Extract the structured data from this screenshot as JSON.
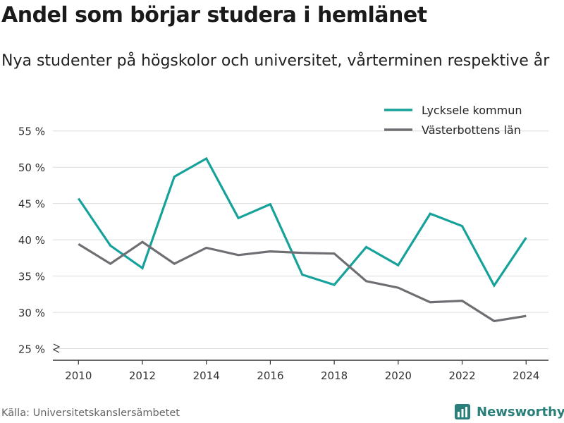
{
  "title": "Andel som börjar studera i hemlänet",
  "subtitle": "Nya studenter på högskolor och universitet, vårterminen respektive år",
  "source": "Källa: Universitetskanslersämbetet",
  "brand": {
    "name": "Newsworthy",
    "icon": "bar-chart-icon",
    "color": "#2a7f7a"
  },
  "chart_data": {
    "type": "line",
    "x": [
      2010,
      2011,
      2012,
      2013,
      2014,
      2015,
      2016,
      2017,
      2018,
      2019,
      2020,
      2021,
      2022,
      2023,
      2024
    ],
    "xticks": [
      "2010",
      "2012",
      "2014",
      "2016",
      "2018",
      "2020",
      "2022",
      "2024"
    ],
    "yticks": [
      "25 %",
      "30 %",
      "35 %",
      "40 %",
      "45 %",
      "50 %",
      "55 %"
    ],
    "ylim": [
      25,
      57.5
    ],
    "grid": true,
    "axis_break": true,
    "legend_position": "top-right",
    "series": [
      {
        "name": "Lycksele kommun",
        "color": "#16a29b",
        "values": [
          45.7,
          39.2,
          36.1,
          48.7,
          51.2,
          43.0,
          44.9,
          35.2,
          33.8,
          39.0,
          36.5,
          43.6,
          41.9,
          33.7,
          40.3
        ]
      },
      {
        "name": "Västerbottens län",
        "color": "#6e6e73",
        "values": [
          39.4,
          36.7,
          39.7,
          36.7,
          38.9,
          37.9,
          38.4,
          38.2,
          38.1,
          34.3,
          33.4,
          31.4,
          31.6,
          28.8,
          29.5
        ]
      }
    ]
  }
}
